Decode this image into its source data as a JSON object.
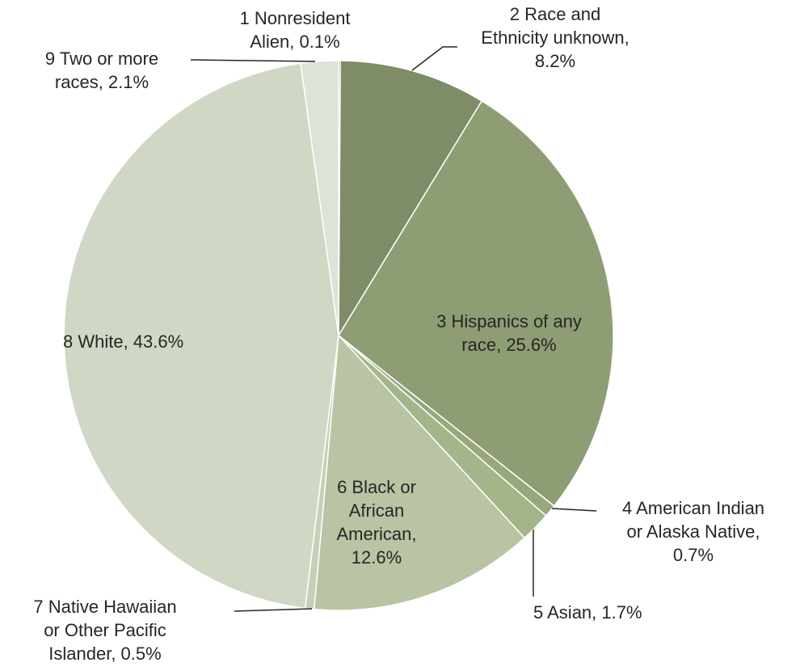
{
  "chart_data": {
    "type": "pie",
    "categories": [
      "1 Nonresident Alien",
      "2 Race and Ethnicity unknown",
      "3 Hispanics of any race",
      "4 American Indian or Alaska Native",
      "5 Asian",
      "6 Black or African American",
      "7 Native Hawaiian or Other Pacific Islander",
      "8 White",
      "9 Two or more races"
    ],
    "values": [
      0.1,
      8.2,
      25.6,
      0.7,
      1.7,
      12.6,
      0.5,
      43.6,
      2.1
    ],
    "colors": [
      "#7f8c68",
      "#7f8c68",
      "#8e9d74",
      "#98a77e",
      "#a4b58a",
      "#b8c4a3",
      "#c7d0b6",
      "#d0d8c5",
      "#dde3d6"
    ],
    "label_lines": [
      [
        "1 Nonresident",
        "Alien, 0.1%"
      ],
      [
        "2 Race and",
        "Ethnicity unknown,",
        "8.2%"
      ],
      [
        "3 Hispanics of any",
        "race, 25.6%"
      ],
      [
        "4 American Indian",
        "or Alaska Native,",
        "0.7%"
      ],
      [
        "5 Asian, 1.7%"
      ],
      [
        "6 Black or",
        "African",
        "American,",
        "12.6%"
      ],
      [
        "7 Native Hawaiian",
        "or Other Pacific",
        "Islander, 0.5%"
      ],
      [
        "8 White, 43.6%"
      ],
      [
        "9 Two or more",
        "races, 2.1%"
      ]
    ]
  }
}
